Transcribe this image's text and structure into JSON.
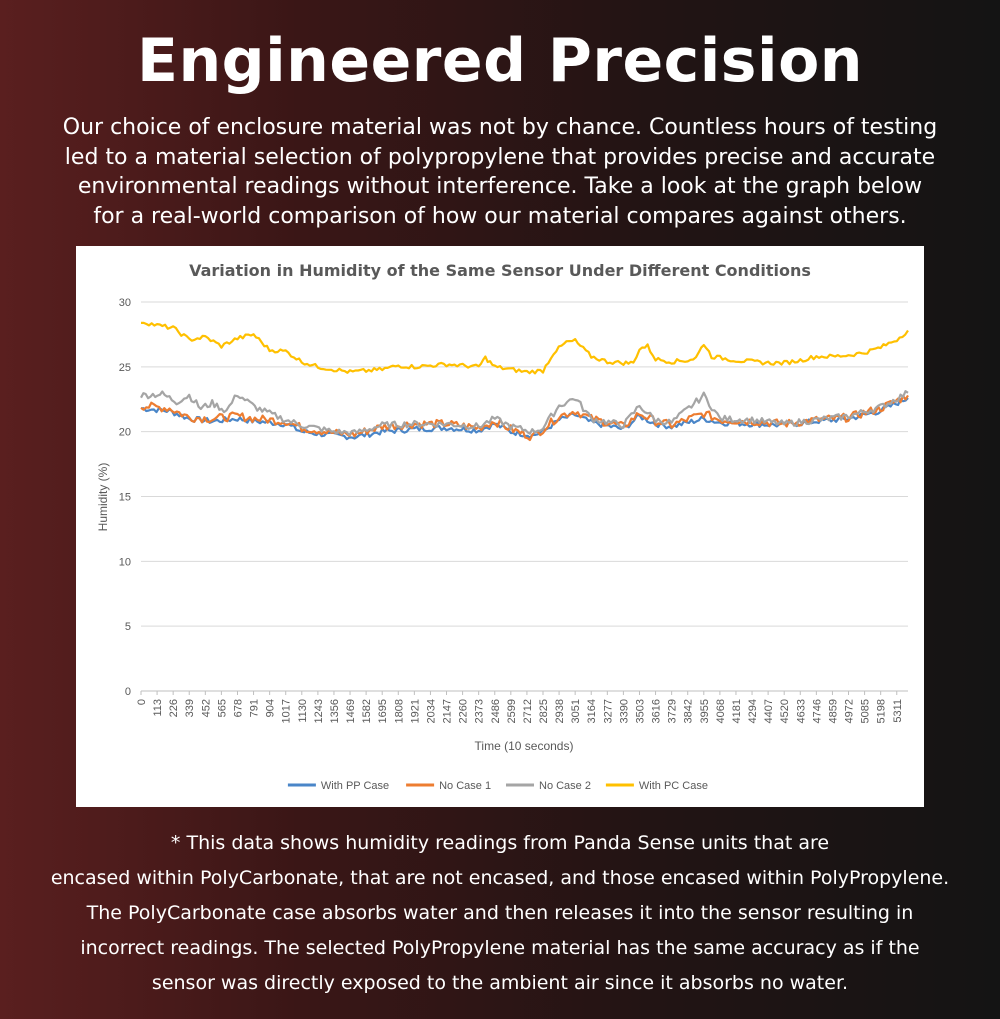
{
  "headline": "Engineered Precision",
  "intro_lines": [
    "Our choice of enclosure material was not by chance. Countless hours of testing",
    "led to a material selection of polypropylene that provides precise and accurate",
    "environmental readings without interference. Take a look at the graph below",
    "for a real-world comparison of how our material compares against others."
  ],
  "footnote_lines": [
    "* This data shows humidity readings from Panda Sense units that are",
    "encased within PolyCarbonate, that are not encased, and those encased within PolyPropylene.",
    "The PolyCarbonate case absorbs water and then releases it into the sensor resulting in",
    "incorrect readings. The selected PolyPropylene material has the same accuracy as if the",
    "sensor was directly exposed to the ambient air since it absorbs no water."
  ],
  "chart_data": {
    "type": "line",
    "title": "Variation in Humidity of the Same Sensor Under Different Conditions",
    "xlabel": "Time (10 seconds)",
    "ylabel": "Humidity (%)",
    "ylim": [
      0,
      30
    ],
    "xlim": [
      0,
      5390
    ],
    "yticks": [
      0,
      5,
      10,
      15,
      20,
      25,
      30
    ],
    "xticks": [
      0,
      113,
      226,
      339,
      452,
      565,
      678,
      791,
      904,
      1017,
      1130,
      1243,
      1356,
      1469,
      1582,
      1695,
      1808,
      1921,
      2034,
      2147,
      2260,
      2373,
      2486,
      2599,
      2712,
      2825,
      2938,
      3051,
      3164,
      3277,
      3390,
      3503,
      3616,
      3729,
      3842,
      3955,
      4068,
      4181,
      4294,
      4407,
      4520,
      4633,
      4746,
      4859,
      4972,
      5085,
      5198,
      5311
    ],
    "grid": true,
    "legend": "bottom",
    "series": [
      {
        "name": "With PP Case",
        "color": "#4a86c8",
        "x": [
          0,
          200,
          339,
          500,
          678,
          800,
          1017,
          1130,
          1356,
          1500,
          1695,
          1921,
          2147,
          2373,
          2486,
          2599,
          2750,
          2825,
          2938,
          3051,
          3164,
          3390,
          3503,
          3616,
          3729,
          3955,
          4068,
          4294,
          4520,
          4746,
          4972,
          5198,
          5390
        ],
        "y": [
          21.8,
          21.6,
          21.0,
          20.8,
          21.0,
          20.8,
          20.6,
          20.0,
          19.7,
          19.6,
          20.0,
          20.2,
          20.3,
          20.1,
          20.6,
          20.0,
          19.7,
          20.0,
          20.9,
          21.3,
          20.7,
          20.2,
          21.2,
          20.6,
          20.4,
          21.0,
          20.7,
          20.6,
          20.5,
          20.8,
          21.0,
          21.6,
          22.6
        ]
      },
      {
        "name": "No Case 1",
        "color": "#ed7d31",
        "x": [
          0,
          200,
          339,
          500,
          678,
          800,
          1017,
          1130,
          1356,
          1500,
          1695,
          1921,
          2147,
          2373,
          2486,
          2599,
          2750,
          2825,
          2938,
          3051,
          3164,
          3390,
          3503,
          3616,
          3729,
          3955,
          4068,
          4294,
          4520,
          4746,
          4972,
          5198,
          5390
        ],
        "y": [
          22.0,
          21.8,
          21.1,
          21.0,
          21.2,
          21.0,
          20.8,
          20.3,
          19.9,
          19.8,
          20.4,
          20.6,
          20.6,
          20.3,
          20.8,
          20.2,
          19.6,
          20.2,
          21.2,
          21.6,
          21.0,
          20.4,
          21.4,
          20.8,
          20.5,
          21.4,
          20.9,
          20.8,
          20.6,
          20.9,
          21.1,
          21.8,
          22.8
        ]
      },
      {
        "name": "No Case 2",
        "color": "#a5a5a5",
        "x": [
          0,
          150,
          250,
          339,
          420,
          500,
          600,
          678,
          800,
          904,
          1017,
          1130,
          1356,
          1500,
          1695,
          1921,
          2147,
          2373,
          2486,
          2599,
          2750,
          2825,
          2938,
          3051,
          3164,
          3390,
          3503,
          3616,
          3729,
          3955,
          4068,
          4294,
          4520,
          4746,
          4972,
          5198,
          5390
        ],
        "y": [
          22.8,
          22.9,
          22.3,
          22.8,
          21.8,
          22.2,
          21.6,
          22.9,
          21.9,
          21.4,
          20.9,
          20.5,
          20.0,
          19.9,
          20.5,
          20.6,
          20.6,
          20.4,
          21.0,
          20.4,
          20.0,
          20.3,
          22.0,
          22.6,
          21.0,
          20.5,
          22.0,
          20.9,
          20.7,
          22.8,
          21.0,
          20.9,
          20.6,
          20.9,
          21.2,
          21.9,
          23.0
        ]
      },
      {
        "name": "With PC Case",
        "color": "#ffc000",
        "x": [
          0,
          113,
          226,
          339,
          452,
          565,
          678,
          791,
          904,
          1017,
          1130,
          1243,
          1356,
          1469,
          1582,
          1695,
          1808,
          1921,
          2034,
          2147,
          2260,
          2373,
          2420,
          2486,
          2599,
          2712,
          2825,
          2900,
          2990,
          3051,
          3164,
          3277,
          3390,
          3460,
          3503,
          3560,
          3616,
          3729,
          3842,
          3900,
          3955,
          4010,
          4068,
          4181,
          4294,
          4407,
          4520,
          4633,
          4746,
          4859,
          4972,
          5085,
          5198,
          5311,
          5390
        ],
        "y": [
          28.5,
          28.2,
          28.0,
          27.1,
          27.3,
          26.6,
          27.2,
          27.5,
          26.3,
          26.2,
          25.4,
          25.0,
          24.8,
          24.6,
          24.7,
          24.8,
          25.1,
          25.0,
          25.1,
          25.2,
          25.1,
          25.0,
          25.7,
          25.0,
          24.8,
          24.6,
          24.7,
          26.1,
          26.9,
          27.0,
          25.8,
          25.4,
          25.3,
          25.3,
          26.4,
          26.6,
          25.6,
          25.4,
          25.5,
          25.7,
          26.8,
          25.8,
          25.7,
          25.5,
          25.4,
          25.3,
          25.3,
          25.5,
          25.8,
          25.8,
          25.9,
          26.1,
          26.5,
          27.1,
          27.8
        ]
      }
    ]
  }
}
